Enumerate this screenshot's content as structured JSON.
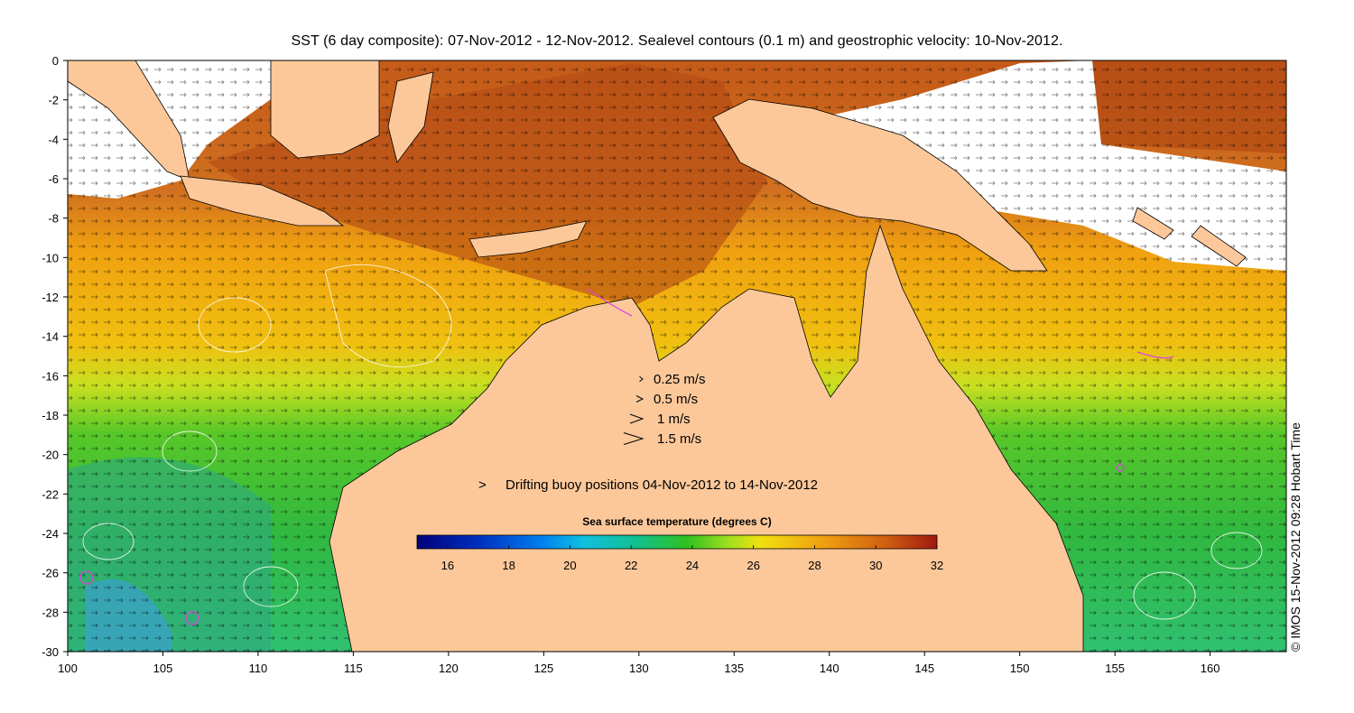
{
  "title": "SST (6 day composite): 07-Nov-2012 - 12-Nov-2012. Sealevel contours (0.1 m) and geostrophic velocity: 10-Nov-2012.",
  "axes": {
    "x_ticks": [
      "100",
      "105",
      "110",
      "115",
      "120",
      "125",
      "130",
      "135",
      "140",
      "145",
      "150",
      "155",
      "160"
    ],
    "y_ticks": [
      "0",
      "-2",
      "-4",
      "-6",
      "-8",
      "-10",
      "-12",
      "-14",
      "-16",
      "-18",
      "-20",
      "-22",
      "-24",
      "-26",
      "-28",
      "-30"
    ],
    "lon_range": [
      100,
      164
    ],
    "lat_range": [
      -30,
      0
    ]
  },
  "velocity_legend": [
    {
      "label": "0.25 m/s",
      "speed": 0.25
    },
    {
      "label": "0.5 m/s",
      "speed": 0.5
    },
    {
      "label": "1 m/s",
      "speed": 1
    },
    {
      "label": "1.5 m/s",
      "speed": 1.5
    }
  ],
  "buoy_legend": {
    "symbol": ">",
    "label": "Drifting buoy positions 04-Nov-2012 to 14-Nov-2012",
    "color": "#e040e0"
  },
  "colorbar": {
    "title": "Sea surface temperature (degrees C)",
    "ticks": [
      "16",
      "18",
      "20",
      "22",
      "24",
      "26",
      "28",
      "30",
      "32"
    ],
    "range": [
      15,
      32
    ]
  },
  "credit": "© IMOS 15-Nov-2012 09:28 Hobart Time",
  "colors": {
    "land": "#fcc89a",
    "cloud": "#ffffff",
    "sst_warm": "#c8601a",
    "sst_mid": "#f0a818",
    "sst_cool": "#40c030",
    "buoy": "#e040e0"
  }
}
